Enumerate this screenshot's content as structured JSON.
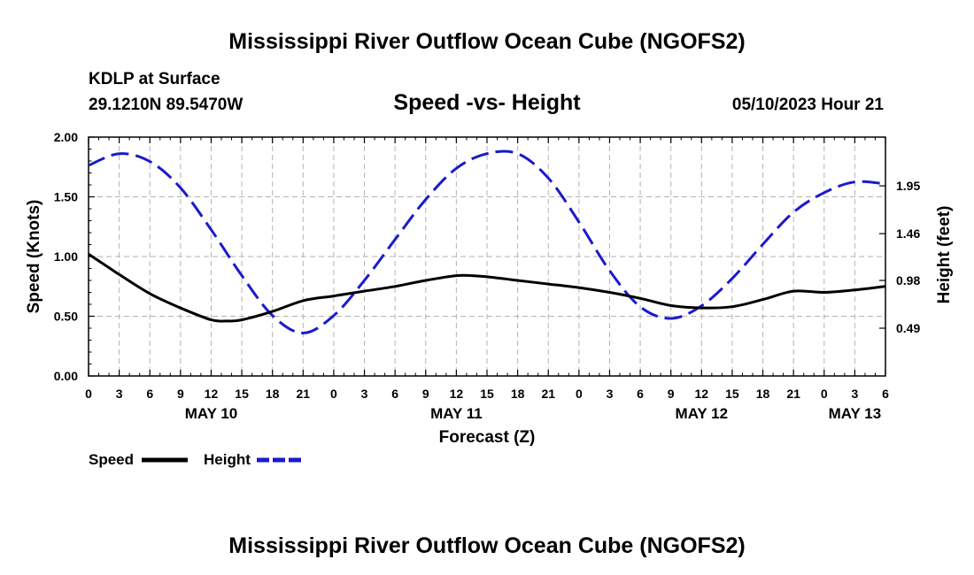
{
  "page": {
    "top_title": "Mississippi River Outflow Ocean Cube (NGOFS2)",
    "bottom_title": "Mississippi River Outflow Ocean Cube (NGOFS2)",
    "station": "KDLP at Surface",
    "coordinates": "29.1210N  89.5470W",
    "valid_time": "05/10/2023 Hour 21"
  },
  "chart_data": {
    "type": "line",
    "title": "Speed -vs- Height",
    "xlabel": "Forecast (Z)",
    "ylabel": "Speed (Knots)",
    "y2label": "Height (feet)",
    "x_unit": "hours from 00Z May 10",
    "xlim": [
      0,
      78
    ],
    "ylim": [
      0,
      2
    ],
    "y2lim": [
      0.0,
      2.45
    ],
    "x_tick_positions": [
      0,
      3,
      6,
      9,
      12,
      15,
      18,
      21,
      24,
      27,
      30,
      33,
      36,
      39,
      42,
      45,
      48,
      51,
      54,
      57,
      60,
      63,
      66,
      69,
      72,
      75,
      78
    ],
    "x_tick_labels": [
      "0",
      "3",
      "6",
      "9",
      "12",
      "15",
      "18",
      "21",
      "0",
      "3",
      "6",
      "9",
      "12",
      "15",
      "18",
      "21",
      "0",
      "3",
      "6",
      "9",
      "12",
      "15",
      "18",
      "21",
      "0",
      "3",
      "6"
    ],
    "day_labels": [
      {
        "x": 12,
        "label": "MAY 10"
      },
      {
        "x": 36,
        "label": "MAY 11"
      },
      {
        "x": 60,
        "label": "MAY 12"
      },
      {
        "x": 75,
        "label": "MAY 13"
      }
    ],
    "y_ticks": [
      0.0,
      0.5,
      1.0,
      1.5,
      2.0
    ],
    "y_tick_labels": [
      "0.00",
      "0.50",
      "1.00",
      "1.50",
      "2.00"
    ],
    "y2_ticks": [
      0.49,
      0.98,
      1.46,
      1.95
    ],
    "y2_tick_labels": [
      "0.49",
      "0.98",
      "1.46",
      "1.95"
    ],
    "series": [
      {
        "name": "Speed",
        "axis": "left",
        "color": "#000000",
        "dash": "solid",
        "x": [
          0,
          3,
          6,
          9,
          12,
          13.5,
          15,
          18,
          21,
          24,
          27,
          30,
          33,
          36,
          37.5,
          39,
          42,
          45,
          48,
          51,
          54,
          57,
          60,
          63,
          66,
          69,
          72,
          75,
          78
        ],
        "values": [
          1.02,
          0.85,
          0.69,
          0.57,
          0.47,
          0.46,
          0.47,
          0.54,
          0.63,
          0.67,
          0.71,
          0.75,
          0.8,
          0.84,
          0.84,
          0.83,
          0.8,
          0.77,
          0.74,
          0.7,
          0.65,
          0.59,
          0.57,
          0.58,
          0.64,
          0.71,
          0.7,
          0.72,
          0.75
        ]
      },
      {
        "name": "Height",
        "axis": "right",
        "color": "#1a1acc",
        "dash": "dashed",
        "x": [
          0,
          3,
          6,
          9,
          12,
          15,
          18,
          21,
          24,
          27,
          30,
          33,
          36,
          39,
          42,
          45,
          48,
          51,
          54,
          57,
          60,
          63,
          66,
          69,
          72,
          75,
          78
        ],
        "values": [
          2.16,
          2.28,
          2.2,
          1.93,
          1.5,
          1.03,
          0.62,
          0.44,
          0.62,
          0.98,
          1.4,
          1.81,
          2.13,
          2.28,
          2.28,
          2.03,
          1.58,
          1.08,
          0.71,
          0.59,
          0.72,
          1.0,
          1.35,
          1.68,
          1.88,
          1.99,
          1.97
        ]
      }
    ],
    "legend": [
      {
        "label": "Speed",
        "color": "#000000",
        "dash": "solid"
      },
      {
        "label": "Height",
        "color": "#1a1acc",
        "dash": "dashed"
      }
    ],
    "grid": true,
    "legend_position": "bottom-left"
  }
}
